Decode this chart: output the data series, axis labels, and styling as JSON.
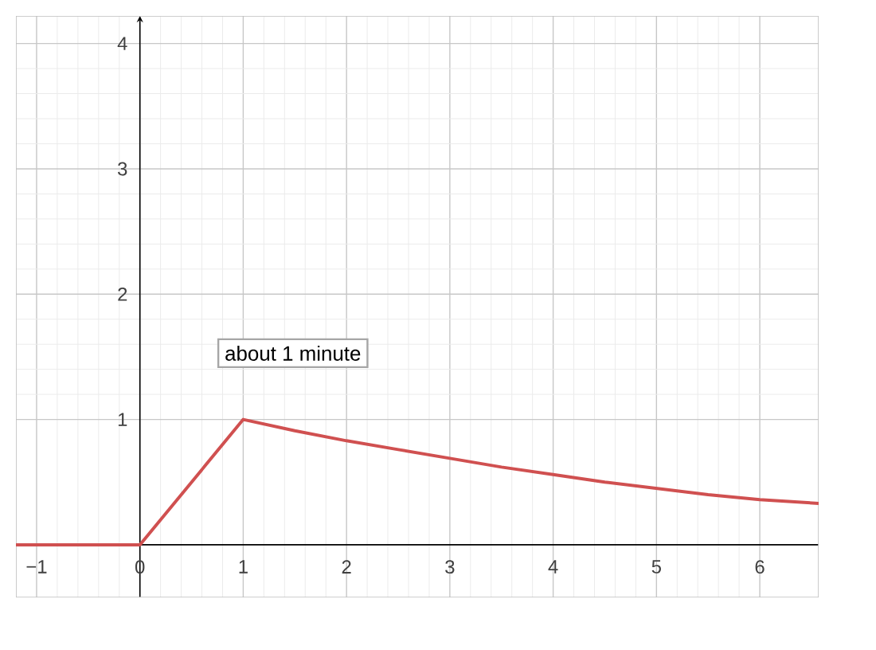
{
  "chart_data": {
    "type": "line",
    "x": [
      -1.2,
      0,
      1,
      1.5,
      2,
      2.5,
      3,
      3.5,
      4,
      4.5,
      5,
      5.5,
      6,
      6.57
    ],
    "values": [
      0,
      0,
      1,
      0.91,
      0.83,
      0.76,
      0.69,
      0.62,
      0.56,
      0.5,
      0.45,
      0.4,
      0.36,
      0.33
    ],
    "color": "#d05050",
    "xlim": [
      -1.2,
      6.57
    ],
    "ylim": [
      -0.42,
      4.22
    ],
    "xticks": [
      {
        "value": -1,
        "label": "−1"
      },
      0,
      1,
      2,
      3,
      4,
      5,
      6
    ],
    "yticks": [
      1,
      2,
      3,
      4
    ],
    "grid": true,
    "annotations": [
      "about 1 minute"
    ]
  }
}
